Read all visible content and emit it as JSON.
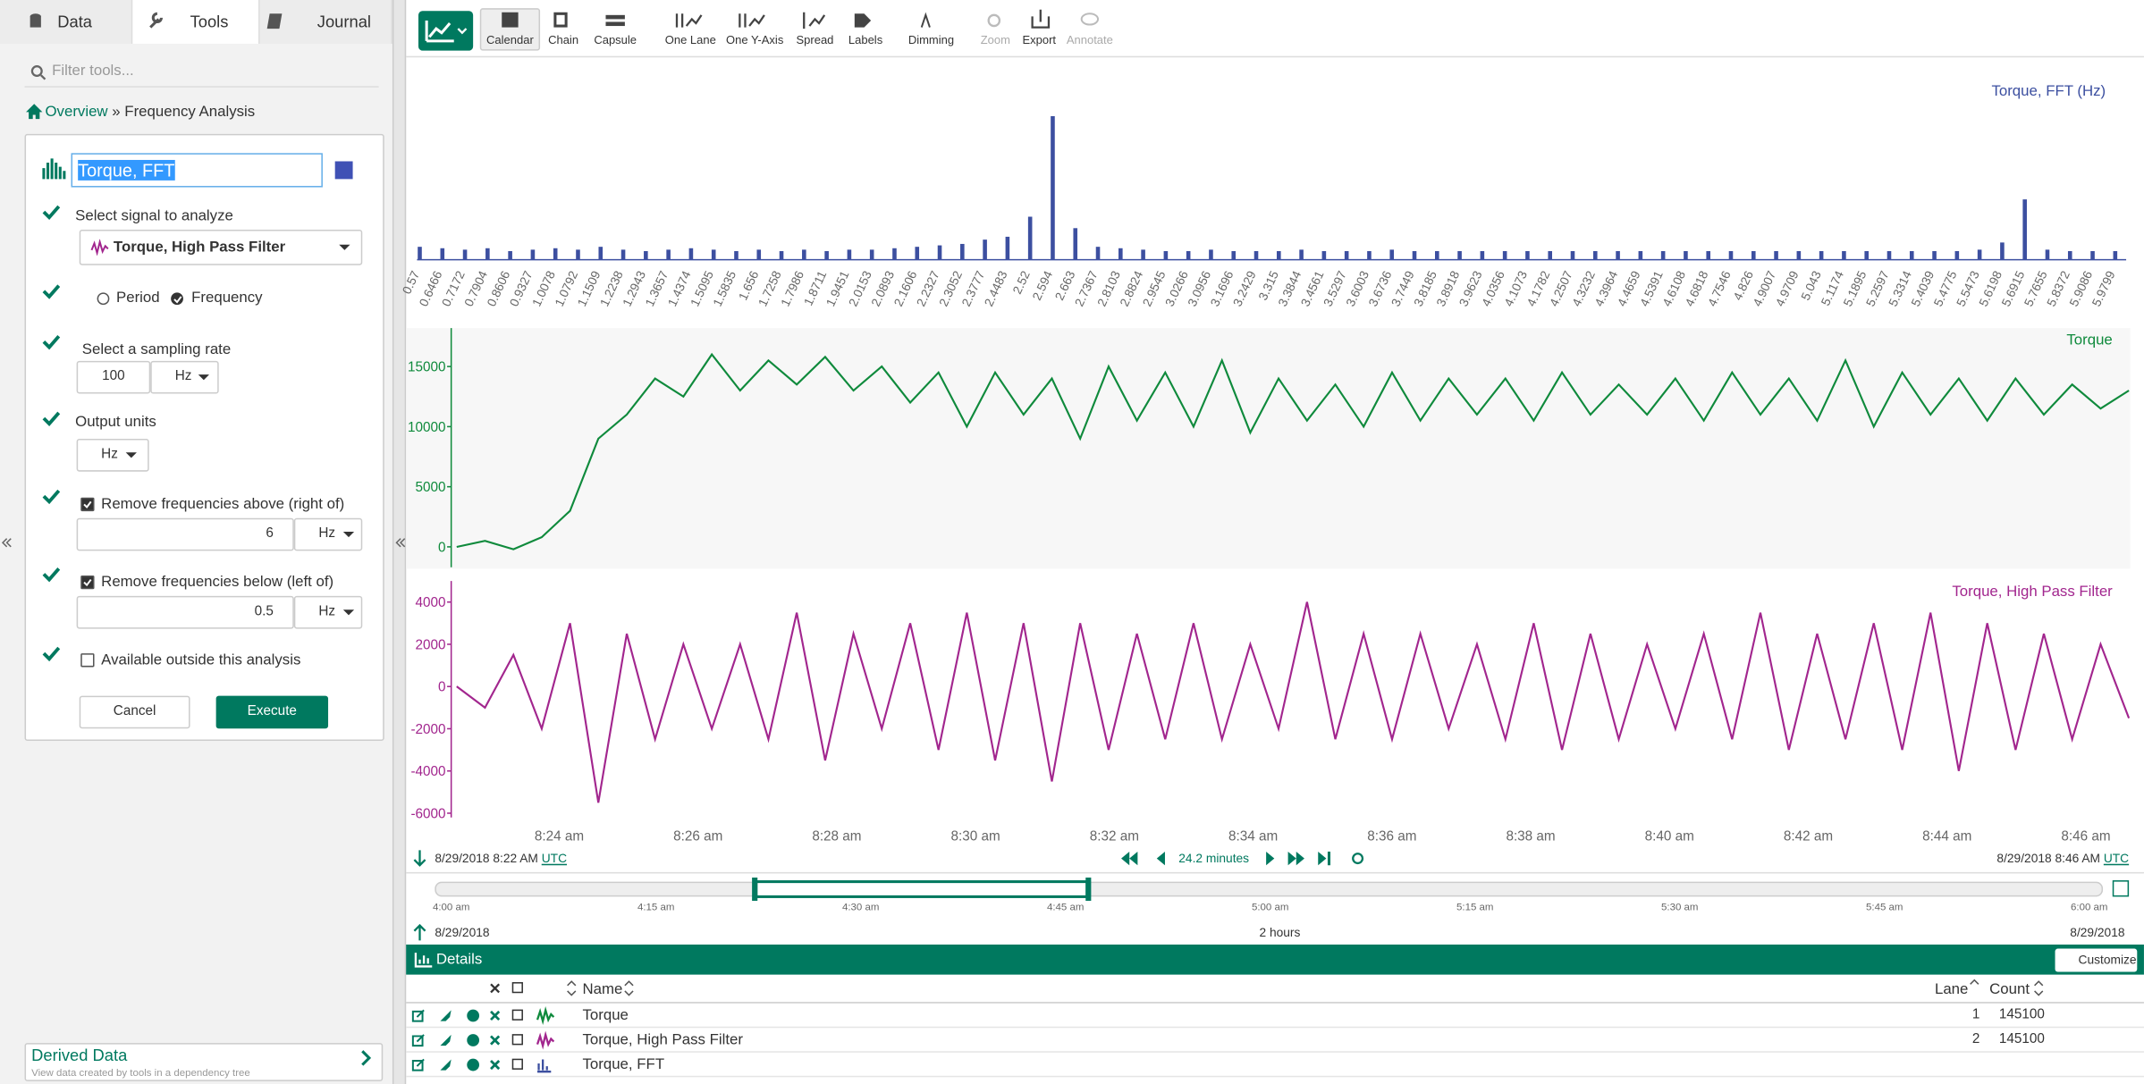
{
  "tabs": [
    "Data",
    "Tools",
    "Journal"
  ],
  "filter_placeholder": "Filter tools...",
  "breadcrumb": {
    "root": "Overview",
    "separator": "»",
    "current": "Frequency Analysis"
  },
  "form": {
    "name": "Torque, FFT",
    "signal_label": "Select signal to analyze",
    "signal": "Torque, High Pass Filter",
    "mode_options": [
      "Period",
      "Frequency"
    ],
    "rate_label": "Select a sampling rate",
    "rate": 100,
    "rate_unit": "Hz",
    "output_label": "Output units",
    "output_unit": "Hz",
    "above_label": "Remove frequencies above (right of)",
    "above": 6,
    "above_unit": "Hz",
    "below_label": "Remove frequencies below (left of)",
    "below": 0.5,
    "below_unit": "Hz",
    "outside_label": "Available outside this analysis",
    "cancel": "Cancel",
    "execute": "Execute"
  },
  "derived": {
    "title": "Derived Data",
    "subtitle": "View data created by tools in a dependency tree"
  },
  "toolbar": [
    "Calendar",
    "Chain",
    "Capsule",
    "One Lane",
    "One Y-Axis",
    "Spread",
    "Labels",
    "Dimming",
    "Zoom",
    "Export",
    "Annotate"
  ],
  "fft": {
    "title": "Torque, FFT (Hz)",
    "color": "#3c4fa0",
    "labels": [
      0.57,
      0.6466,
      0.7172,
      0.7904,
      0.8606,
      0.9327,
      1.0078,
      1.0792,
      1.1509,
      1.2238,
      1.2943,
      1.3657,
      1.4374,
      1.5095,
      1.5835,
      1.656,
      1.7258,
      1.7986,
      1.8711,
      1.9451,
      2.0153,
      2.0893,
      2.1606,
      2.2327,
      2.3052,
      2.3777,
      2.4483,
      2.52,
      2.594,
      2.663,
      2.7367,
      2.8103,
      2.8824,
      2.9545,
      3.0266,
      3.0956,
      3.1696,
      3.2429,
      3.315,
      3.3844,
      3.4561,
      3.5297,
      3.6003,
      3.6736,
      3.7449,
      3.8185,
      3.8918,
      3.9623,
      4.0356,
      4.1073,
      4.1782,
      4.2507,
      4.3232,
      4.3964,
      4.4659,
      4.5391,
      4.6108,
      4.6818,
      4.7546,
      4.826,
      4.9007,
      4.9709,
      5.043,
      5.1174,
      5.1895,
      5.2597,
      5.3314,
      5.4039,
      5.4775,
      5.5473,
      5.6198,
      5.6915,
      5.7655,
      5.8372,
      5.9086,
      5.9799
    ],
    "values": [
      9,
      8,
      7,
      8,
      6,
      7,
      8,
      7,
      9,
      7,
      6,
      7,
      8,
      7,
      6,
      7,
      6,
      7,
      6,
      7,
      7,
      8,
      9,
      10,
      11,
      14,
      16,
      30,
      100,
      22,
      9,
      8,
      7,
      6,
      6,
      7,
      6,
      6,
      6,
      7,
      6,
      6,
      6,
      7,
      6,
      6,
      6,
      6,
      6,
      6,
      6,
      6,
      6,
      6,
      6,
      6,
      6,
      6,
      6,
      6,
      6,
      6,
      6,
      6,
      6,
      6,
      6,
      6,
      6,
      7,
      12,
      42,
      7,
      6,
      6,
      6
    ]
  },
  "torque": {
    "title": "Torque",
    "color": "#0f8a3c",
    "ylim": [
      -1700,
      18200
    ],
    "yticks": [
      0,
      5000,
      10000,
      15000
    ],
    "values": [
      0,
      500,
      -200,
      800,
      3000,
      9000,
      11000,
      14000,
      12500,
      16000,
      13000,
      15500,
      13500,
      15800,
      13000,
      15000,
      12000,
      14500,
      10000,
      14500,
      11000,
      14000,
      9000,
      15000,
      10500,
      14500,
      10000,
      15500,
      9500,
      14000,
      10500,
      13500,
      10000,
      14500,
      10500,
      14000,
      11000,
      14000,
      10500,
      14500,
      11000,
      13500,
      11000,
      14000,
      10500,
      14500,
      11000,
      14000,
      10500,
      15500,
      10000,
      14500,
      11000,
      14000,
      10500,
      14000,
      11000,
      13500,
      11500,
      13000
    ]
  },
  "hpf": {
    "title": "Torque, High Pass Filter",
    "color": "#a2268e",
    "ylim": [
      -6200,
      5000
    ],
    "yticks": [
      -6000,
      -4000,
      -2000,
      0,
      2000,
      4000
    ],
    "values": [
      0,
      -1000,
      1500,
      -2000,
      3000,
      -5500,
      2500,
      -2500,
      2000,
      -2000,
      2000,
      -2500,
      3500,
      -3500,
      2500,
      -2000,
      3000,
      -3000,
      3500,
      -3500,
      3000,
      -4500,
      3000,
      -3000,
      2500,
      -2500,
      3000,
      -2500,
      2000,
      -2000,
      4000,
      -2500,
      2500,
      -2500,
      2500,
      -2000,
      2000,
      -2500,
      3000,
      -3000,
      2500,
      -2500,
      2000,
      -2000,
      2500,
      -2500,
      3500,
      -3000,
      2500,
      -2500,
      3000,
      -3000,
      3500,
      -4000,
      3000,
      -3000,
      2500,
      -2500,
      2000,
      -1500
    ]
  },
  "time_axis": {
    "labels": [
      "8:24 am",
      "8:26 am",
      "8:28 am",
      "8:30 am",
      "8:32 am",
      "8:34 am",
      "8:36 am",
      "8:38 am",
      "8:40 am",
      "8:42 am",
      "8:44 am",
      "8:46 am"
    ]
  },
  "range": {
    "start": "8/29/2018 8:22 AM",
    "start_tz": "UTC",
    "duration": "24.2 minutes",
    "end": "8/29/2018 8:46 AM",
    "end_tz": "UTC"
  },
  "overview": {
    "labels": [
      "4:00 am",
      "4:15 am",
      "4:30 am",
      "4:45 am",
      "5:00 am",
      "5:15 am",
      "5:30 am",
      "5:45 am",
      "6:00 am"
    ],
    "start": "8/29/2018",
    "duration": "2 hours",
    "end": "8/29/2018"
  },
  "details": {
    "title": "Details",
    "customize": "Customize",
    "columns": [
      "Name",
      "Lane",
      "Count"
    ],
    "rows": [
      {
        "name": "Torque",
        "lane": 1,
        "count": 145100
      },
      {
        "name": "Torque, High Pass Filter",
        "lane": 2,
        "count": 145100
      },
      {
        "name": "Torque, FFT",
        "lane": null,
        "count": null
      }
    ]
  }
}
